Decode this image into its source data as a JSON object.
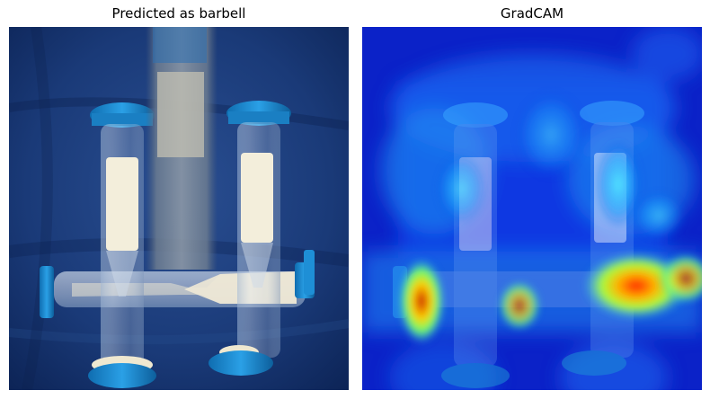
{
  "panels": {
    "left": {
      "title": "Predicted as barbell"
    },
    "right": {
      "title": "GradCAM"
    }
  },
  "colors": {
    "fabric_dark": "#0f2a5e",
    "fabric_mid": "#1d3f7e",
    "cap_blue": "#1e8fd6",
    "sand": "#f3eedb",
    "heatmap_low": "#0a1fd6",
    "heatmap_high": "#ff2a00"
  },
  "icons": [
    "hourglass-image",
    "heatmap-overlay"
  ]
}
